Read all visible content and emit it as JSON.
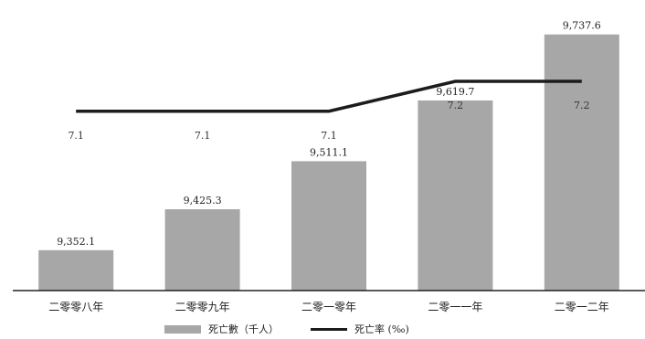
{
  "chart_data": {
    "type": "bar",
    "categories": [
      "二零零八年",
      "二零零九年",
      "二零一零年",
      "二零一一年",
      "二零一二年"
    ],
    "series": [
      {
        "name": "死亡數（千人）",
        "type": "bar",
        "values": [
          9352.1,
          9425.3,
          9511.1,
          9619.7,
          9737.6
        ],
        "labels": [
          "9,352.1",
          "9,425.3",
          "9,511.1",
          "9,619.7",
          "9,737.6"
        ],
        "color": "#a7a7a7"
      },
      {
        "name": "死亡率 (‰)",
        "type": "line",
        "values": [
          7.1,
          7.1,
          7.1,
          7.2,
          7.2
        ],
        "labels": [
          "7.1",
          "7.1",
          "7.1",
          "7.2",
          "7.2"
        ],
        "color": "#1c1c1c"
      }
    ],
    "title": "",
    "xlabel": "",
    "ylabel": "",
    "grid": false,
    "legend": "bottom"
  }
}
